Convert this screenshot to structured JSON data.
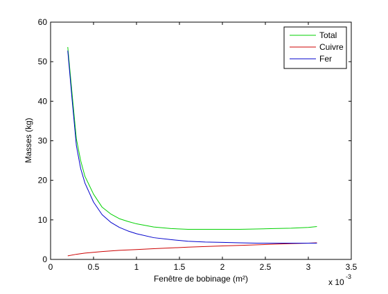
{
  "chart_data": {
    "type": "line",
    "xlabel": "Fenêtre de bobinage (m²)",
    "ylabel": "Masses (kg)",
    "x_scale_label": "x 10",
    "x_scale_exponent": "-3",
    "xlim": [
      0,
      3.5
    ],
    "ylim": [
      0,
      60
    ],
    "x_ticks": [
      0,
      0.5,
      1,
      1.5,
      2,
      2.5,
      3,
      3.5
    ],
    "x_tick_labels": [
      "0",
      "0.5",
      "1",
      "1.5",
      "2",
      "2.5",
      "3",
      "3.5"
    ],
    "y_ticks": [
      0,
      10,
      20,
      30,
      40,
      50,
      60
    ],
    "y_tick_labels": [
      "0",
      "10",
      "20",
      "30",
      "40",
      "50",
      "60"
    ],
    "grid": false,
    "legend_position": "top-right",
    "series": [
      {
        "name": "Total",
        "color": "#00d000",
        "x": [
          0.2,
          0.25,
          0.3,
          0.35,
          0.4,
          0.5,
          0.6,
          0.7,
          0.8,
          0.9,
          1.0,
          1.2,
          1.4,
          1.6,
          1.8,
          2.0,
          2.2,
          2.4,
          2.6,
          2.8,
          3.0,
          3.1
        ],
        "y": [
          53.7,
          42.0,
          30.5,
          25.0,
          21.0,
          16.5,
          13.2,
          11.5,
          10.3,
          9.6,
          9.0,
          8.2,
          7.8,
          7.6,
          7.6,
          7.6,
          7.6,
          7.7,
          7.8,
          7.9,
          8.1,
          8.3
        ]
      },
      {
        "name": "Cuivre",
        "color": "#cc0000",
        "x": [
          0.2,
          0.3,
          0.4,
          0.5,
          0.6,
          0.8,
          1.0,
          1.2,
          1.4,
          1.6,
          1.8,
          2.0,
          2.2,
          2.4,
          2.6,
          2.8,
          3.0,
          3.1
        ],
        "y": [
          0.9,
          1.3,
          1.6,
          1.8,
          2.0,
          2.3,
          2.5,
          2.7,
          2.9,
          3.1,
          3.25,
          3.4,
          3.55,
          3.7,
          3.85,
          4.0,
          4.1,
          4.2
        ]
      },
      {
        "name": "Fer",
        "color": "#0000cc",
        "x": [
          0.2,
          0.25,
          0.3,
          0.35,
          0.4,
          0.5,
          0.6,
          0.7,
          0.8,
          0.9,
          1.0,
          1.2,
          1.4,
          1.6,
          1.8,
          2.0,
          2.2,
          2.4,
          2.6,
          2.8,
          3.0,
          3.1
        ],
        "y": [
          52.8,
          40.5,
          28.8,
          23.0,
          19.3,
          14.5,
          11.3,
          9.4,
          8.1,
          7.2,
          6.5,
          5.5,
          5.0,
          4.6,
          4.4,
          4.3,
          4.2,
          4.1,
          4.1,
          4.1,
          4.1,
          4.1
        ]
      }
    ]
  }
}
